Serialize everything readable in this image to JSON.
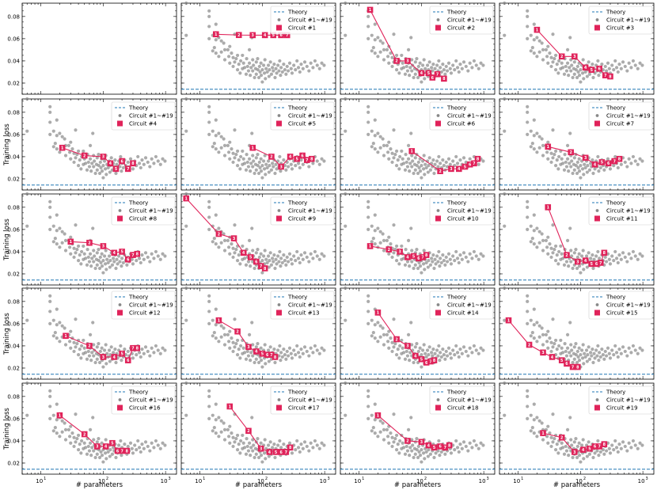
{
  "figure": {
    "ylabel": "Training loss",
    "xlabel": "# parameters",
    "legend": {
      "theory": "Theory",
      "all": "Circuit #1~#19"
    },
    "colors": {
      "theory": "#1f77b4",
      "scatter": "#888888",
      "highlight": "#e0235a",
      "marker_text": "#ffffff"
    }
  },
  "chart_data": {
    "type": "scatter",
    "layout": "grid 5 rows x 4 columns, shared axes",
    "xscale": "log",
    "xlim": [
      5,
      1500
    ],
    "ylim": [
      0.01,
      0.092
    ],
    "x_ticks": [
      {
        "v": 10,
        "label": "10",
        "sup": "1"
      },
      {
        "v": 100,
        "label": "10",
        "sup": "2"
      },
      {
        "v": 1000,
        "label": "10",
        "sup": "3"
      }
    ],
    "y_ticks": [
      {
        "v": 0.02,
        "label": "0.02"
      },
      {
        "v": 0.04,
        "label": "0.04"
      },
      {
        "v": 0.06,
        "label": "0.06"
      },
      {
        "v": 0.08,
        "label": "0.08"
      }
    ],
    "theory_value": 0.0145,
    "grid": false,
    "legend_position": "top-right",
    "background_points": [
      [
        6,
        0.063
      ],
      [
        6,
        0.092
      ],
      [
        14,
        0.071
      ],
      [
        14,
        0.08
      ],
      [
        14,
        0.085
      ],
      [
        14,
        0.06
      ],
      [
        16,
        0.063
      ],
      [
        16,
        0.049
      ],
      [
        17,
        0.052
      ],
      [
        18,
        0.059
      ],
      [
        18,
        0.047
      ],
      [
        18,
        0.073
      ],
      [
        20,
        0.061
      ],
      [
        20,
        0.044
      ],
      [
        22,
        0.058
      ],
      [
        22,
        0.048
      ],
      [
        24,
        0.056
      ],
      [
        25,
        0.05
      ],
      [
        25,
        0.041
      ],
      [
        28,
        0.05
      ],
      [
        29,
        0.044
      ],
      [
        30,
        0.053
      ],
      [
        30,
        0.038
      ],
      [
        32,
        0.047
      ],
      [
        34,
        0.043
      ],
      [
        34,
        0.035
      ],
      [
        36,
        0.064
      ],
      [
        36,
        0.039
      ],
      [
        38,
        0.042
      ],
      [
        40,
        0.045
      ],
      [
        40,
        0.032
      ],
      [
        42,
        0.037
      ],
      [
        44,
        0.029
      ],
      [
        45,
        0.04
      ],
      [
        48,
        0.045
      ],
      [
        48,
        0.033
      ],
      [
        50,
        0.038
      ],
      [
        52,
        0.034
      ],
      [
        55,
        0.028
      ],
      [
        56,
        0.042
      ],
      [
        58,
        0.035
      ],
      [
        60,
        0.031
      ],
      [
        62,
        0.05
      ],
      [
        62,
        0.038
      ],
      [
        64,
        0.027
      ],
      [
        66,
        0.034
      ],
      [
        68,
        0.061
      ],
      [
        70,
        0.041
      ],
      [
        70,
        0.031
      ],
      [
        72,
        0.036
      ],
      [
        75,
        0.025
      ],
      [
        78,
        0.033
      ],
      [
        80,
        0.039
      ],
      [
        80,
        0.028
      ],
      [
        84,
        0.042
      ],
      [
        85,
        0.032
      ],
      [
        88,
        0.025
      ],
      [
        90,
        0.035
      ],
      [
        92,
        0.03
      ],
      [
        95,
        0.038
      ],
      [
        96,
        0.027
      ],
      [
        100,
        0.032
      ],
      [
        100,
        0.021
      ],
      [
        105,
        0.036
      ],
      [
        108,
        0.029
      ],
      [
        110,
        0.041
      ],
      [
        112,
        0.024
      ],
      [
        115,
        0.033
      ],
      [
        120,
        0.03
      ],
      [
        125,
        0.036
      ],
      [
        128,
        0.026
      ],
      [
        130,
        0.032
      ],
      [
        135,
        0.039
      ],
      [
        140,
        0.028
      ],
      [
        145,
        0.034
      ],
      [
        150,
        0.031
      ],
      [
        155,
        0.037
      ],
      [
        160,
        0.025
      ],
      [
        165,
        0.033
      ],
      [
        170,
        0.029
      ],
      [
        178,
        0.036
      ],
      [
        185,
        0.031
      ],
      [
        190,
        0.04
      ],
      [
        196,
        0.027
      ],
      [
        200,
        0.034
      ],
      [
        210,
        0.03
      ],
      [
        220,
        0.037
      ],
      [
        230,
        0.032
      ],
      [
        240,
        0.028
      ],
      [
        250,
        0.035
      ],
      [
        260,
        0.031
      ],
      [
        275,
        0.038
      ],
      [
        290,
        0.033
      ],
      [
        300,
        0.029
      ],
      [
        320,
        0.036
      ],
      [
        340,
        0.032
      ],
      [
        360,
        0.04
      ],
      [
        380,
        0.034
      ],
      [
        400,
        0.03
      ],
      [
        420,
        0.037
      ],
      [
        450,
        0.033
      ],
      [
        480,
        0.039
      ],
      [
        520,
        0.035
      ],
      [
        560,
        0.031
      ],
      [
        600,
        0.038
      ],
      [
        650,
        0.034
      ],
      [
        700,
        0.04
      ],
      [
        760,
        0.036
      ],
      [
        830,
        0.033
      ],
      [
        900,
        0.038
      ],
      [
        980,
        0.036
      ]
    ],
    "circuits": [
      {
        "name": "",
        "points": []
      },
      {
        "name": "Circuit #1",
        "points": [
          [
            18,
            0.064
          ],
          [
            42,
            0.0633
          ],
          [
            70,
            0.0632
          ],
          [
            110,
            0.0632
          ],
          [
            150,
            0.0632
          ],
          [
            200,
            0.0632
          ],
          [
            250,
            0.0632
          ]
        ]
      },
      {
        "name": "Circuit #2",
        "points": [
          [
            15,
            0.086
          ],
          [
            40,
            0.04
          ],
          [
            60,
            0.04
          ],
          [
            100,
            0.029
          ],
          [
            130,
            0.029
          ],
          [
            150,
            0.025
          ],
          [
            180,
            0.028
          ],
          [
            230,
            0.024
          ]
        ]
      },
      {
        "name": "Circuit #3",
        "points": [
          [
            20,
            0.068
          ],
          [
            50,
            0.044
          ],
          [
            80,
            0.044
          ],
          [
            120,
            0.034
          ],
          [
            150,
            0.032
          ],
          [
            200,
            0.033
          ],
          [
            250,
            0.027
          ],
          [
            300,
            0.026
          ]
        ]
      },
      {
        "name": "Circuit #4",
        "points": [
          [
            22,
            0.048
          ],
          [
            50,
            0.041
          ],
          [
            100,
            0.04
          ],
          [
            130,
            0.034
          ],
          [
            160,
            0.029
          ],
          [
            200,
            0.036
          ],
          [
            250,
            0.029
          ],
          [
            300,
            0.034
          ]
        ]
      },
      {
        "name": "Circuit #5",
        "points": [
          [
            70,
            0.048
          ],
          [
            140,
            0.04
          ],
          [
            200,
            0.031
          ],
          [
            280,
            0.04
          ],
          [
            360,
            0.038
          ],
          [
            440,
            0.041
          ],
          [
            520,
            0.037
          ],
          [
            620,
            0.038
          ]
        ]
      },
      {
        "name": "Circuit #6",
        "points": [
          [
            70,
            0.045
          ],
          [
            200,
            0.027
          ],
          [
            300,
            0.029
          ],
          [
            400,
            0.029
          ],
          [
            500,
            0.031
          ],
          [
            600,
            0.033
          ],
          [
            700,
            0.034
          ],
          [
            800,
            0.038
          ]
        ]
      },
      {
        "name": "Circuit #7",
        "points": [
          [
            30,
            0.049
          ],
          [
            70,
            0.044
          ],
          [
            120,
            0.039
          ],
          [
            170,
            0.033
          ],
          [
            220,
            0.035
          ],
          [
            280,
            0.034
          ],
          [
            350,
            0.036
          ],
          [
            420,
            0.038
          ]
        ]
      },
      {
        "name": "Circuit #8",
        "points": [
          [
            30,
            0.049
          ],
          [
            60,
            0.048
          ],
          [
            100,
            0.045
          ],
          [
            150,
            0.039
          ],
          [
            200,
            0.04
          ],
          [
            250,
            0.033
          ],
          [
            300,
            0.037
          ],
          [
            350,
            0.038
          ]
        ]
      },
      {
        "name": "Circuit #9",
        "points": [
          [
            6,
            0.088
          ],
          [
            20,
            0.056
          ],
          [
            35,
            0.052
          ],
          [
            50,
            0.039
          ],
          [
            65,
            0.035
          ],
          [
            80,
            0.031
          ],
          [
            95,
            0.027
          ],
          [
            110,
            0.025
          ]
        ]
      },
      {
        "name": "Circuit #10",
        "points": [
          [
            15,
            0.045
          ],
          [
            30,
            0.042
          ],
          [
            45,
            0.04
          ],
          [
            60,
            0.035
          ],
          [
            75,
            0.036
          ],
          [
            90,
            0.034
          ],
          [
            105,
            0.035
          ],
          [
            120,
            0.037
          ]
        ]
      },
      {
        "name": "Circuit #11",
        "points": [
          [
            30,
            0.08
          ],
          [
            60,
            0.037
          ],
          [
            90,
            0.031
          ],
          [
            120,
            0.032
          ],
          [
            150,
            0.029
          ],
          [
            180,
            0.029
          ],
          [
            210,
            0.03
          ],
          [
            240,
            0.039
          ]
        ]
      },
      {
        "name": "Circuit #12",
        "points": [
          [
            25,
            0.049
          ],
          [
            60,
            0.04
          ],
          [
            100,
            0.03
          ],
          [
            150,
            0.03
          ],
          [
            200,
            0.033
          ],
          [
            250,
            0.027
          ],
          [
            300,
            0.038
          ],
          [
            350,
            0.038
          ]
        ]
      },
      {
        "name": "Circuit #13",
        "points": [
          [
            20,
            0.063
          ],
          [
            40,
            0.053
          ],
          [
            60,
            0.039
          ],
          [
            80,
            0.035
          ],
          [
            100,
            0.033
          ],
          [
            120,
            0.032
          ],
          [
            140,
            0.032
          ],
          [
            160,
            0.03
          ]
        ]
      },
      {
        "name": "Circuit #14",
        "points": [
          [
            20,
            0.07
          ],
          [
            40,
            0.046
          ],
          [
            60,
            0.04
          ],
          [
            80,
            0.031
          ],
          [
            100,
            0.028
          ],
          [
            120,
            0.025
          ],
          [
            140,
            0.026
          ],
          [
            160,
            0.027
          ]
        ]
      },
      {
        "name": "Circuit #15",
        "points": [
          [
            7,
            0.063
          ],
          [
            15,
            0.041
          ],
          [
            25,
            0.034
          ],
          [
            35,
            0.03
          ],
          [
            50,
            0.027
          ],
          [
            60,
            0.024
          ],
          [
            75,
            0.021
          ],
          [
            90,
            0.021
          ]
        ]
      },
      {
        "name": "Circuit #16",
        "points": [
          [
            20,
            0.063
          ],
          [
            50,
            0.046
          ],
          [
            80,
            0.035
          ],
          [
            110,
            0.035
          ],
          [
            140,
            0.038
          ],
          [
            170,
            0.031
          ],
          [
            200,
            0.031
          ],
          [
            240,
            0.031
          ]
        ]
      },
      {
        "name": "Circuit #17",
        "points": [
          [
            30,
            0.071
          ],
          [
            60,
            0.049
          ],
          [
            95,
            0.033
          ],
          [
            130,
            0.03
          ],
          [
            165,
            0.03
          ],
          [
            200,
            0.03
          ],
          [
            240,
            0.03
          ],
          [
            280,
            0.034
          ]
        ]
      },
      {
        "name": "Circuit #18",
        "points": [
          [
            20,
            0.063
          ],
          [
            60,
            0.04
          ],
          [
            100,
            0.039
          ],
          [
            130,
            0.036
          ],
          [
            160,
            0.034
          ],
          [
            200,
            0.035
          ],
          [
            240,
            0.034
          ],
          [
            280,
            0.036
          ]
        ]
      },
      {
        "name": "Circuit #19",
        "points": [
          [
            25,
            0.047
          ],
          [
            50,
            0.043
          ],
          [
            80,
            0.03
          ],
          [
            110,
            0.032
          ],
          [
            140,
            0.033
          ],
          [
            170,
            0.035
          ],
          [
            200,
            0.035
          ],
          [
            240,
            0.037
          ]
        ]
      }
    ]
  }
}
